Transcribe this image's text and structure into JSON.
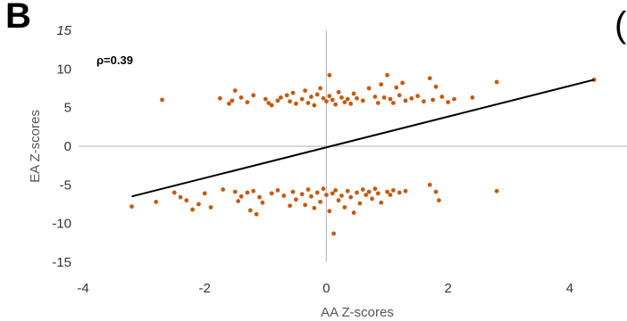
{
  "panel_label": "B",
  "next_panel_label": "(",
  "chart_data": {
    "type": "scatter",
    "title": "",
    "xlabel": "AA Z-scores",
    "ylabel": "EA Z-scores",
    "xlim": [
      -4,
      5
    ],
    "ylim": [
      -15,
      15
    ],
    "xticks": [
      -4,
      -2,
      0,
      2,
      4
    ],
    "xtick_labels": [
      "-4",
      "-2",
      "0",
      "2",
      "4"
    ],
    "yticks": [
      -15,
      -10,
      -5,
      0,
      5,
      10,
      15
    ],
    "ytick_labels": [
      "-15",
      "-10",
      "-5",
      "0",
      "5",
      "10",
      "15"
    ],
    "annotation": "ρ=0.39",
    "point_color": "#C55A11",
    "trendline": {
      "x": [
        -3.2,
        4.4
      ],
      "y": [
        -6.5,
        8.6
      ],
      "color": "#000000"
    },
    "grid": false,
    "series": [
      {
        "points": [
          [
            -2.7,
            6.0
          ],
          [
            -1.75,
            6.2
          ],
          [
            -1.6,
            5.5
          ],
          [
            -1.55,
            5.9
          ],
          [
            -1.5,
            7.2
          ],
          [
            -1.4,
            6.3
          ],
          [
            -1.3,
            5.7
          ],
          [
            -1.2,
            6.6
          ],
          [
            -1.0,
            6.1
          ],
          [
            -0.95,
            5.6
          ],
          [
            -0.9,
            5.3
          ],
          [
            -0.8,
            5.9
          ],
          [
            -0.75,
            6.3
          ],
          [
            -0.65,
            6.6
          ],
          [
            -0.6,
            5.8
          ],
          [
            -0.55,
            6.9
          ],
          [
            -0.5,
            5.5
          ],
          [
            -0.4,
            6.1
          ],
          [
            -0.35,
            7.2
          ],
          [
            -0.3,
            5.6
          ],
          [
            -0.25,
            6.4
          ],
          [
            -0.2,
            5.3
          ],
          [
            -0.15,
            6.7
          ],
          [
            -0.1,
            7.5
          ],
          [
            -0.05,
            6.2
          ],
          [
            0.0,
            5.8
          ],
          [
            0.05,
            6.5
          ],
          [
            0.05,
            9.2
          ],
          [
            0.1,
            6.0
          ],
          [
            0.15,
            5.4
          ],
          [
            0.2,
            7.0
          ],
          [
            0.25,
            6.3
          ],
          [
            0.3,
            5.7
          ],
          [
            0.35,
            6.1
          ],
          [
            0.4,
            5.5
          ],
          [
            0.45,
            6.8
          ],
          [
            0.5,
            6.2
          ],
          [
            0.6,
            5.9
          ],
          [
            0.7,
            7.5
          ],
          [
            0.8,
            6.4
          ],
          [
            0.85,
            5.6
          ],
          [
            0.9,
            8.0
          ],
          [
            0.95,
            6.3
          ],
          [
            1.0,
            9.2
          ],
          [
            1.05,
            6.1
          ],
          [
            1.1,
            5.6
          ],
          [
            1.15,
            7.6
          ],
          [
            1.2,
            6.6
          ],
          [
            1.25,
            8.2
          ],
          [
            1.3,
            5.9
          ],
          [
            1.4,
            6.2
          ],
          [
            1.5,
            6.5
          ],
          [
            1.6,
            5.8
          ],
          [
            1.7,
            8.8
          ],
          [
            1.75,
            6.0
          ],
          [
            1.8,
            7.7
          ],
          [
            1.9,
            6.4
          ],
          [
            2.0,
            5.7
          ],
          [
            2.1,
            6.1
          ],
          [
            2.4,
            6.3
          ],
          [
            2.8,
            8.3
          ],
          [
            4.4,
            8.6
          ],
          [
            -3.2,
            -7.8
          ],
          [
            -2.8,
            -7.2
          ],
          [
            -2.5,
            -6.0
          ],
          [
            -2.4,
            -6.6
          ],
          [
            -2.3,
            -7.0
          ],
          [
            -2.2,
            -8.2
          ],
          [
            -2.1,
            -7.5
          ],
          [
            -2.0,
            -6.1
          ],
          [
            -1.9,
            -7.9
          ],
          [
            -1.7,
            -5.6
          ],
          [
            -1.5,
            -5.9
          ],
          [
            -1.45,
            -7.1
          ],
          [
            -1.4,
            -6.5
          ],
          [
            -1.3,
            -6.0
          ],
          [
            -1.25,
            -8.3
          ],
          [
            -1.2,
            -5.8
          ],
          [
            -1.15,
            -8.8
          ],
          [
            -1.1,
            -6.6
          ],
          [
            -1.05,
            -7.3
          ],
          [
            -0.9,
            -6.1
          ],
          [
            -0.8,
            -5.7
          ],
          [
            -0.7,
            -6.4
          ],
          [
            -0.6,
            -7.7
          ],
          [
            -0.55,
            -5.9
          ],
          [
            -0.5,
            -6.9
          ],
          [
            -0.4,
            -6.2
          ],
          [
            -0.35,
            -7.6
          ],
          [
            -0.3,
            -5.6
          ],
          [
            -0.25,
            -6.5
          ],
          [
            -0.2,
            -8.0
          ],
          [
            -0.15,
            -6.0
          ],
          [
            -0.1,
            -7.2
          ],
          [
            -0.05,
            -5.5
          ],
          [
            0.0,
            -6.3
          ],
          [
            0.05,
            -8.4
          ],
          [
            0.1,
            -6.1
          ],
          [
            0.12,
            -11.3
          ],
          [
            0.15,
            -5.7
          ],
          [
            0.2,
            -7.0
          ],
          [
            0.25,
            -6.4
          ],
          [
            0.3,
            -7.9
          ],
          [
            0.35,
            -5.8
          ],
          [
            0.4,
            -6.6
          ],
          [
            0.45,
            -8.6
          ],
          [
            0.5,
            -6.0
          ],
          [
            0.55,
            -7.4
          ],
          [
            0.6,
            -5.6
          ],
          [
            0.65,
            -6.3
          ],
          [
            0.7,
            -5.9
          ],
          [
            0.75,
            -6.8
          ],
          [
            0.8,
            -5.5
          ],
          [
            0.85,
            -6.1
          ],
          [
            0.9,
            -7.3
          ],
          [
            1.0,
            -5.9
          ],
          [
            1.05,
            -6.3
          ],
          [
            1.1,
            -5.7
          ],
          [
            1.2,
            -6.0
          ],
          [
            1.3,
            -5.8
          ],
          [
            1.7,
            -5.0
          ],
          [
            1.8,
            -5.9
          ],
          [
            1.85,
            -7.0
          ],
          [
            2.8,
            -5.8
          ]
        ]
      }
    ]
  }
}
